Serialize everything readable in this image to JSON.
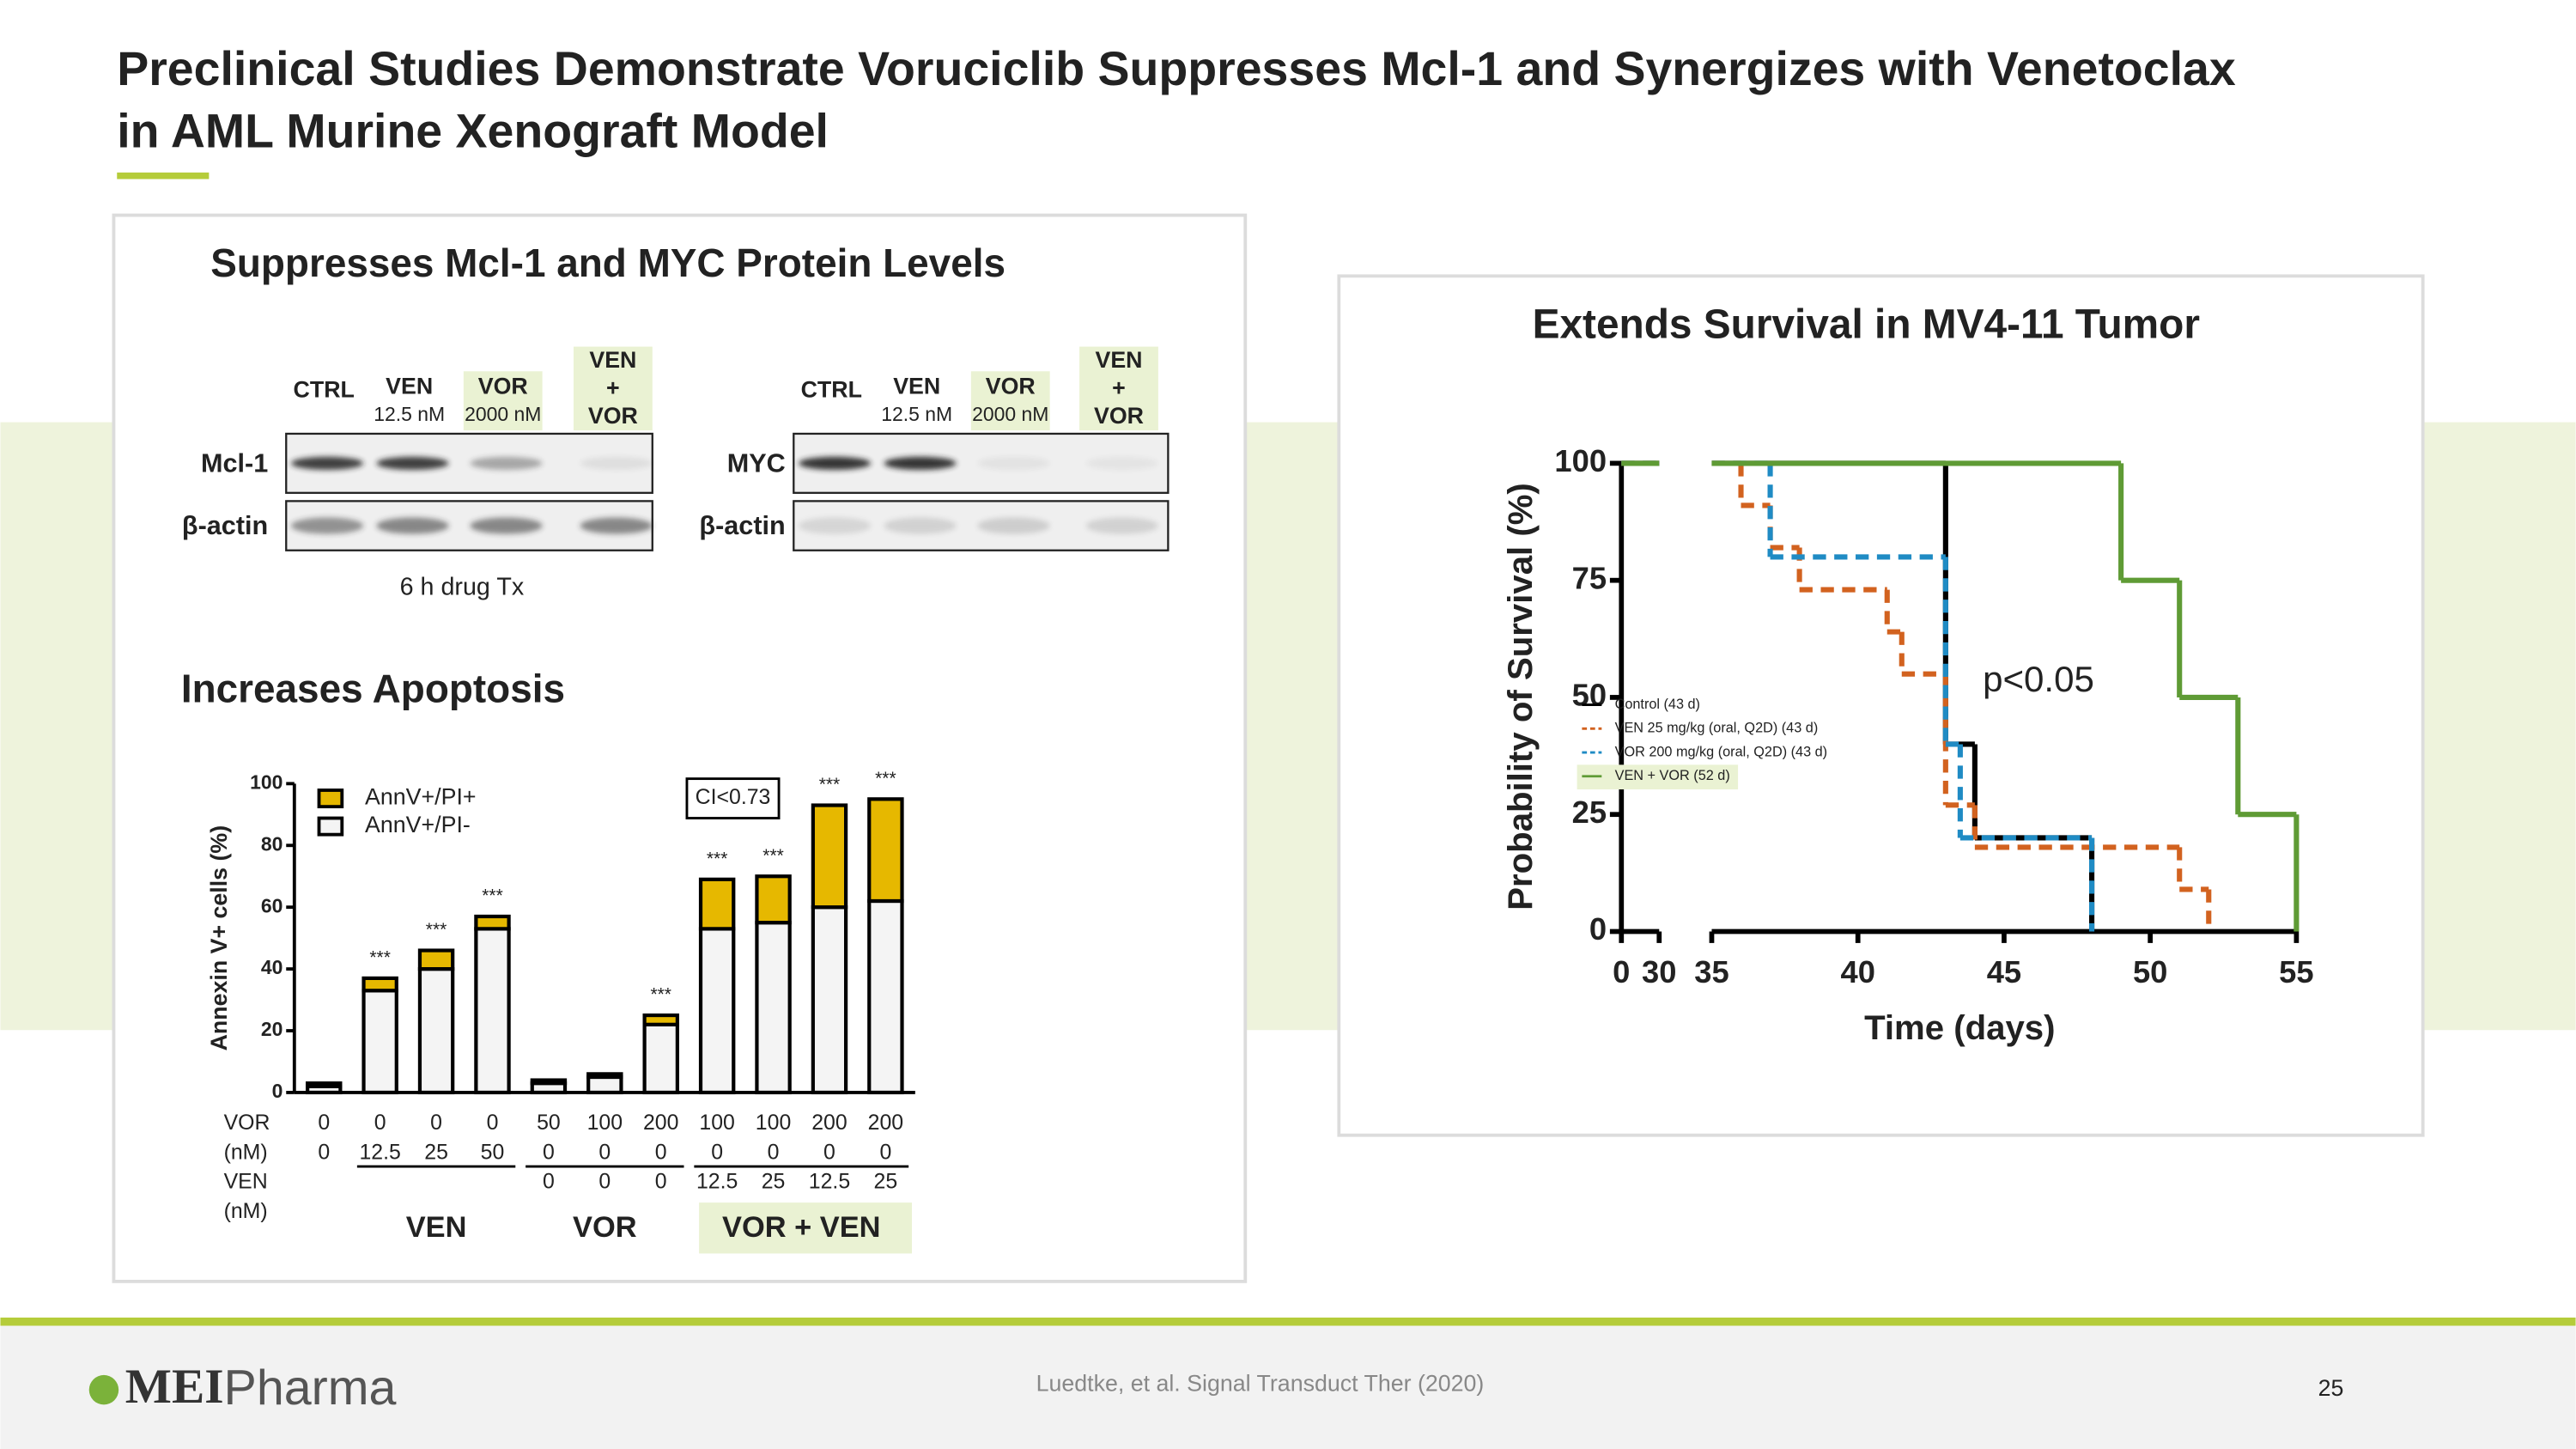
{
  "header": {
    "title": [
      "Preclinical Studies Demonstrate Voruciclib Suppresses Mcl-1 and Synergizes with Venetoclax",
      "in AML Murine Xenograft Model"
    ]
  },
  "blot": {
    "title": "Suppresses Mcl-1 and MYC Protein Levels",
    "lanes": [
      [
        "CTRL"
      ],
      [
        "VEN",
        "12.5 nM"
      ],
      [
        "VOR",
        "2000 nM"
      ],
      [
        "VEN",
        "+",
        "VOR"
      ]
    ],
    "left_rows": [
      "Mcl-1",
      "β-actin"
    ],
    "right_rows": [
      "MYC",
      "β-actin"
    ],
    "note": "6 h drug Tx"
  },
  "chart_data": [
    {
      "type": "bar",
      "stacked": true,
      "title": "Increases Apoptosis",
      "ylabel": "Annexin V+ cells (%)",
      "ylim": [
        0,
        100
      ],
      "yticks": [
        0,
        20,
        40,
        60,
        80,
        100
      ],
      "row_labels": [
        "VOR",
        "(nM)",
        "VEN",
        "(nM)"
      ],
      "category_rows": [
        [
          "0",
          "0",
          "0",
          "0",
          "50",
          "100",
          "200",
          "100",
          "100",
          "200",
          "200"
        ],
        [
          "0",
          "12.5",
          "25",
          "50",
          "0",
          "0",
          "0",
          "0",
          "0",
          "0",
          "0"
        ],
        [
          null,
          null,
          null,
          null,
          "0",
          "0",
          "0",
          "12.5",
          "25",
          "12.5",
          "25"
        ]
      ],
      "series": [
        {
          "name": "AnnV+/PI-",
          "color": "#f4f4f4",
          "values": [
            2,
            33,
            40,
            53,
            3,
            5,
            22,
            53,
            55,
            60,
            62
          ]
        },
        {
          "name": "AnnV+/PI+",
          "color": "#e6b800",
          "values": [
            1,
            4,
            6,
            4,
            1,
            1,
            3,
            16,
            15,
            33,
            33
          ]
        }
      ],
      "significance": [
        null,
        "***",
        "***",
        "***",
        null,
        null,
        "***",
        "***",
        "***",
        "***",
        "***"
      ],
      "annotation": "CI<0.73",
      "groups": [
        "VEN",
        "VOR",
        "VOR + VEN"
      ]
    },
    {
      "type": "step",
      "title": "Extends Survival in MV4-11 Tumor",
      "xlabel": "Time (days)",
      "ylabel": "Probability of Survival (%)",
      "xlim": [
        0,
        55
      ],
      "xbreak": [
        30,
        35
      ],
      "xticks": [
        0,
        30,
        35,
        40,
        45,
        50,
        55
      ],
      "ylim": [
        0,
        100
      ],
      "yticks": [
        0,
        25,
        50,
        75,
        100
      ],
      "series": [
        {
          "name": "Control (43 d)",
          "color": "#000000",
          "dashed": false,
          "x": [
            0,
            43,
            44,
            48
          ],
          "values": [
            100,
            40,
            20,
            0
          ]
        },
        {
          "name": "VEN 25 mg/kg (oral, Q2D) (43 d)",
          "color": "#d2621f",
          "dashed": true,
          "x": [
            0,
            36,
            37,
            38,
            41,
            41.5,
            43,
            44,
            51,
            52
          ],
          "values": [
            100,
            91,
            82,
            73,
            64,
            55,
            27,
            18,
            9,
            0
          ]
        },
        {
          "name": "VOR 200 mg/kg (oral, Q2D) (43 d)",
          "color": "#1f8bc4",
          "dashed": true,
          "x": [
            0,
            37,
            43,
            43.5,
            48
          ],
          "values": [
            100,
            80,
            40,
            20,
            0
          ]
        },
        {
          "name": "VEN + VOR (52 d)",
          "color": "#5f9b35",
          "dashed": false,
          "x": [
            0,
            49,
            51,
            53,
            55
          ],
          "values": [
            100,
            75,
            50,
            25,
            0
          ]
        }
      ],
      "annotation": "p<0.05"
    }
  ],
  "footer": {
    "logo_bold": "MEI",
    "logo_light": "Pharma",
    "citation": "Luedtke, et al. Signal Transduct Ther (2020)",
    "page": "25"
  }
}
